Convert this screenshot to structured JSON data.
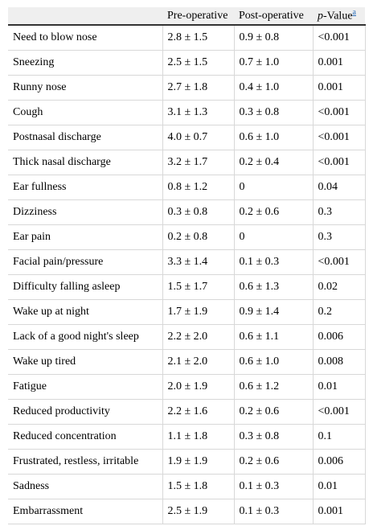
{
  "table": {
    "header": {
      "pre": "Pre-operative",
      "post": "Post-operative",
      "p_italic": "p",
      "p_rest": "-Value",
      "p_note": "a"
    },
    "rows": [
      [
        "Need to blow nose",
        "2.8 ± 1.5",
        "0.9 ± 0.8",
        "<0.001"
      ],
      [
        "Sneezing",
        "2.5 ± 1.5",
        "0.7 ± 1.0",
        "0.001"
      ],
      [
        "Runny nose",
        "2.7 ± 1.8",
        "0.4 ± 1.0",
        "0.001"
      ],
      [
        "Cough",
        "3.1 ± 1.3",
        "0.3 ± 0.8",
        "<0.001"
      ],
      [
        "Postnasal discharge",
        "4.0 ± 0.7",
        "0.6 ± 1.0",
        "<0.001"
      ],
      [
        "Thick nasal discharge",
        "3.2 ± 1.7",
        "0.2 ± 0.4",
        "<0.001"
      ],
      [
        "Ear fullness",
        "0.8 ± 1.2",
        "0",
        "0.04"
      ],
      [
        "Dizziness",
        "0.3 ± 0.8",
        "0.2 ± 0.6",
        "0.3"
      ],
      [
        "Ear pain",
        "0.2 ± 0.8",
        "0",
        "0.3"
      ],
      [
        "Facial pain/pressure",
        "3.3 ± 1.4",
        "0.1 ± 0.3",
        "<0.001"
      ],
      [
        "Difficulty falling asleep",
        "1.5 ± 1.7",
        "0.6 ± 1.3",
        "0.02"
      ],
      [
        "Wake up at night",
        "1.7 ± 1.9",
        "0.9 ± 1.4",
        "0.2"
      ],
      [
        "Lack of a good night's sleep",
        "2.2 ± 2.0",
        "0.6 ± 1.1",
        "0.006"
      ],
      [
        "Wake up tired",
        "2.1 ± 2.0",
        "0.6 ± 1.0",
        "0.008"
      ],
      [
        "Fatigue",
        "2.0 ± 1.9",
        "0.6 ± 1.2",
        "0.01"
      ],
      [
        "Reduced productivity",
        "2.2 ± 1.6",
        "0.2 ± 0.6",
        "<0.001"
      ],
      [
        "Reduced concentration",
        "1.1 ± 1.8",
        "0.3 ± 0.8",
        "0.1"
      ],
      [
        "Frustrated, restless, irritable",
        "1.9 ± 1.9",
        "0.2 ± 0.6",
        "0.006"
      ],
      [
        "Sadness",
        "1.5 ± 1.8",
        "0.1 ± 0.3",
        "0.01"
      ],
      [
        "Embarrassment",
        "2.5 ± 1.9",
        "0.1 ± 0.3",
        "0.001"
      ]
    ]
  }
}
